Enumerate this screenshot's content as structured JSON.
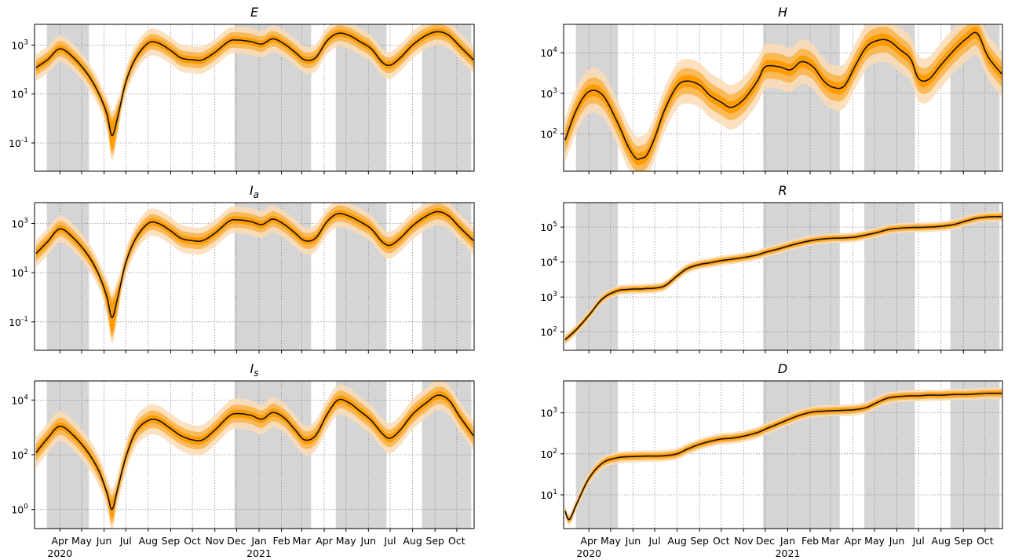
{
  "colors": {
    "line": "#111111",
    "band_outer": "#fbdcb5",
    "band_mid": "#fbb54c",
    "band_inner": "#ff9a00",
    "shade": "#d5d5d5",
    "grid": "#8c8c8c"
  },
  "chart_data": [
    {
      "type": "line",
      "title": "E",
      "title_sub": "",
      "yscale": "log",
      "ylim": [
        0.007,
        7000
      ],
      "yticks": [
        {
          "base": "10",
          "exp": "-1",
          "value": 0.1
        },
        {
          "base": "10",
          "exp": "1",
          "value": 10
        },
        {
          "base": "10",
          "exp": "3",
          "value": 1000
        }
      ],
      "months": [
        "Apr",
        "May",
        "Jun",
        "Jul",
        "Aug",
        "Sep",
        "Oct",
        "Nov",
        "Dec",
        "Jan",
        "Feb",
        "Mar",
        "Apr",
        "May",
        "Jun",
        "Jul",
        "Aug",
        "Sep",
        "Oct"
      ],
      "years": [
        "2020",
        "2021"
      ],
      "show_xlabels": false,
      "shaded_periods": [
        [
          "2020-03-14",
          "2020-05-11"
        ],
        [
          "2020-11-28",
          "2021-03-14"
        ],
        [
          "2021-04-17",
          "2021-06-26"
        ],
        [
          "2021-08-14",
          "2021-10-21"
        ]
      ],
      "x": [
        "2020-02-28",
        "2020-03-15",
        "2020-04-01",
        "2020-04-20",
        "2020-05-10",
        "2020-05-25",
        "2020-06-05",
        "2020-06-12",
        "2020-06-20",
        "2020-07-01",
        "2020-07-15",
        "2020-08-01",
        "2020-08-15",
        "2020-09-01",
        "2020-09-15",
        "2020-10-01",
        "2020-10-15",
        "2020-11-01",
        "2020-11-20",
        "2020-12-01",
        "2020-12-20",
        "2021-01-05",
        "2021-01-20",
        "2021-02-05",
        "2021-02-20",
        "2021-03-05",
        "2021-03-20",
        "2021-04-05",
        "2021-04-20",
        "2021-05-05",
        "2021-05-20",
        "2021-06-05",
        "2021-06-20",
        "2021-07-01",
        "2021-07-15",
        "2021-08-01",
        "2021-08-20",
        "2021-09-05",
        "2021-09-20",
        "2021-10-05",
        "2021-10-24"
      ],
      "series": [
        {
          "values": [
            120,
            250,
            700,
            300,
            60,
            10,
            1.5,
            0.2,
            1.2,
            30,
            300,
            1200,
            1200,
            600,
            300,
            250,
            250,
            500,
            1400,
            1600,
            1400,
            1100,
            1800,
            1100,
            500,
            250,
            300,
            1500,
            3000,
            2500,
            1400,
            700,
            200,
            150,
            300,
            1000,
            2500,
            3500,
            2500,
            900,
            250
          ]
        }
      ]
    },
    {
      "type": "line",
      "title": "I",
      "title_sub": "a",
      "yscale": "log",
      "ylim": [
        0.007,
        7000
      ],
      "yticks": [
        {
          "base": "10",
          "exp": "-1",
          "value": 0.1
        },
        {
          "base": "10",
          "exp": "1",
          "value": 10
        },
        {
          "base": "10",
          "exp": "3",
          "value": 1000
        }
      ],
      "months": [
        "Apr",
        "May",
        "Jun",
        "Jul",
        "Aug",
        "Sep",
        "Oct",
        "Nov",
        "Dec",
        "Jan",
        "Feb",
        "Mar",
        "Apr",
        "May",
        "Jun",
        "Jul",
        "Aug",
        "Sep",
        "Oct"
      ],
      "years": [
        "2020",
        "2021"
      ],
      "show_xlabels": false,
      "shaded_periods": [
        [
          "2020-03-14",
          "2020-05-11"
        ],
        [
          "2020-11-28",
          "2021-03-14"
        ],
        [
          "2021-04-17",
          "2021-06-26"
        ],
        [
          "2021-08-14",
          "2021-10-21"
        ]
      ],
      "x": [
        "2020-02-28",
        "2020-03-15",
        "2020-04-01",
        "2020-04-20",
        "2020-05-10",
        "2020-05-25",
        "2020-06-05",
        "2020-06-12",
        "2020-06-20",
        "2020-07-01",
        "2020-07-15",
        "2020-08-01",
        "2020-08-15",
        "2020-09-01",
        "2020-09-15",
        "2020-10-01",
        "2020-10-15",
        "2020-11-01",
        "2020-11-20",
        "2020-12-01",
        "2020-12-20",
        "2021-01-05",
        "2021-01-20",
        "2021-02-05",
        "2021-02-20",
        "2021-03-05",
        "2021-03-20",
        "2021-04-05",
        "2021-04-20",
        "2021-05-05",
        "2021-05-20",
        "2021-06-05",
        "2021-06-20",
        "2021-07-01",
        "2021-07-15",
        "2021-08-01",
        "2021-08-20",
        "2021-09-05",
        "2021-09-20",
        "2021-10-05",
        "2021-10-24"
      ],
      "series": [
        {
          "values": [
            60,
            180,
            600,
            250,
            50,
            8,
            1.0,
            0.15,
            1.0,
            25,
            250,
            1000,
            1000,
            500,
            250,
            200,
            200,
            400,
            1200,
            1400,
            1200,
            900,
            1500,
            900,
            400,
            200,
            250,
            1200,
            2500,
            2000,
            1200,
            600,
            180,
            130,
            250,
            800,
            2000,
            3000,
            2000,
            700,
            200
          ]
        }
      ]
    },
    {
      "type": "line",
      "title": "I",
      "title_sub": "s",
      "yscale": "log",
      "ylim": [
        0.2,
        50000
      ],
      "yticks": [
        {
          "base": "10",
          "exp": "0",
          "value": 1
        },
        {
          "base": "10",
          "exp": "2",
          "value": 100
        },
        {
          "base": "10",
          "exp": "4",
          "value": 10000
        }
      ],
      "months": [
        "Apr",
        "May",
        "Jun",
        "Jul",
        "Aug",
        "Sep",
        "Oct",
        "Nov",
        "Dec",
        "Jan",
        "Feb",
        "Mar",
        "Apr",
        "May",
        "Jun",
        "Jul",
        "Aug",
        "Sep",
        "Oct"
      ],
      "years": [
        "2020",
        "2021"
      ],
      "show_xlabels": true,
      "shaded_periods": [
        [
          "2020-03-14",
          "2020-05-11"
        ],
        [
          "2020-11-28",
          "2021-03-14"
        ],
        [
          "2021-04-17",
          "2021-06-26"
        ],
        [
          "2021-08-14",
          "2021-10-21"
        ]
      ],
      "x": [
        "2020-02-28",
        "2020-03-15",
        "2020-04-01",
        "2020-04-20",
        "2020-05-10",
        "2020-05-25",
        "2020-06-05",
        "2020-06-12",
        "2020-06-20",
        "2020-07-01",
        "2020-07-15",
        "2020-08-01",
        "2020-08-15",
        "2020-09-01",
        "2020-09-15",
        "2020-10-01",
        "2020-10-15",
        "2020-11-01",
        "2020-11-20",
        "2020-12-01",
        "2020-12-20",
        "2021-01-05",
        "2021-01-20",
        "2021-02-05",
        "2021-02-20",
        "2021-03-05",
        "2021-03-20",
        "2021-04-05",
        "2021-04-20",
        "2021-05-05",
        "2021-05-20",
        "2021-06-05",
        "2021-06-20",
        "2021-07-01",
        "2021-07-15",
        "2021-08-01",
        "2021-08-20",
        "2021-09-05",
        "2021-09-20",
        "2021-10-05",
        "2021-10-24"
      ],
      "series": [
        {
          "values": [
            120,
            400,
            1100,
            500,
            120,
            25,
            4,
            1.0,
            6,
            80,
            700,
            1800,
            1800,
            900,
            500,
            350,
            350,
            800,
            2500,
            3200,
            2800,
            2000,
            3500,
            2200,
            800,
            350,
            500,
            3000,
            10000,
            8000,
            4000,
            1800,
            600,
            400,
            800,
            3000,
            8000,
            15000,
            10000,
            2500,
            500
          ]
        }
      ]
    },
    {
      "type": "line",
      "title": "H",
      "title_sub": "",
      "yscale": "log",
      "ylim": [
        12,
        50000
      ],
      "yticks": [
        {
          "base": "10",
          "exp": "2",
          "value": 100
        },
        {
          "base": "10",
          "exp": "3",
          "value": 1000
        },
        {
          "base": "10",
          "exp": "4",
          "value": 10000
        }
      ],
      "months": [
        "Apr",
        "May",
        "Jun",
        "Jul",
        "Aug",
        "Sep",
        "Oct",
        "Nov",
        "Dec",
        "Jan",
        "Feb",
        "Mar",
        "Apr",
        "May",
        "Jun",
        "Jul",
        "Aug",
        "Sep",
        "Oct"
      ],
      "years": [
        "2020",
        "2021"
      ],
      "show_xlabels": false,
      "shaded_periods": [
        [
          "2020-03-14",
          "2020-05-11"
        ],
        [
          "2020-11-28",
          "2021-03-14"
        ],
        [
          "2021-04-17",
          "2021-06-26"
        ],
        [
          "2021-08-14",
          "2021-10-21"
        ]
      ],
      "x": [
        "2020-02-28",
        "2020-03-15",
        "2020-04-01",
        "2020-04-20",
        "2020-05-10",
        "2020-05-25",
        "2020-06-05",
        "2020-06-12",
        "2020-06-20",
        "2020-07-01",
        "2020-07-15",
        "2020-08-01",
        "2020-08-15",
        "2020-09-01",
        "2020-09-15",
        "2020-10-01",
        "2020-10-15",
        "2020-11-01",
        "2020-11-20",
        "2020-12-01",
        "2020-12-20",
        "2021-01-05",
        "2021-01-20",
        "2021-02-05",
        "2021-02-20",
        "2021-03-05",
        "2021-03-20",
        "2021-04-05",
        "2021-04-20",
        "2021-05-05",
        "2021-05-20",
        "2021-06-05",
        "2021-06-20",
        "2021-07-01",
        "2021-07-15",
        "2021-08-01",
        "2021-08-20",
        "2021-09-05",
        "2021-09-20",
        "2021-10-05",
        "2021-10-24"
      ],
      "series": [
        {
          "values": [
            70,
            400,
            1100,
            900,
            200,
            50,
            25,
            25,
            30,
            80,
            400,
            1500,
            2000,
            1600,
            900,
            600,
            450,
            700,
            2000,
            4500,
            4500,
            3800,
            6000,
            4500,
            2000,
            1400,
            1500,
            5000,
            14000,
            20000,
            20000,
            12000,
            7000,
            2300,
            2200,
            5000,
            12000,
            22000,
            30000,
            8000,
            3000
          ]
        }
      ]
    },
    {
      "type": "line",
      "title": "R",
      "title_sub": "",
      "yscale": "log",
      "ylim": [
        30,
        500000
      ],
      "yticks": [
        {
          "base": "10",
          "exp": "2",
          "value": 100
        },
        {
          "base": "10",
          "exp": "3",
          "value": 1000
        },
        {
          "base": "10",
          "exp": "4",
          "value": 10000
        },
        {
          "base": "10",
          "exp": "5",
          "value": 100000
        }
      ],
      "months": [
        "Apr",
        "May",
        "Jun",
        "Jul",
        "Aug",
        "Sep",
        "Oct",
        "Nov",
        "Dec",
        "Jan",
        "Feb",
        "Mar",
        "Apr",
        "May",
        "Jun",
        "Jul",
        "Aug",
        "Sep",
        "Oct"
      ],
      "years": [
        "2020",
        "2021"
      ],
      "show_xlabels": false,
      "shaded_periods": [
        [
          "2020-03-14",
          "2020-05-11"
        ],
        [
          "2020-11-28",
          "2021-03-14"
        ],
        [
          "2021-04-17",
          "2021-06-26"
        ],
        [
          "2021-08-14",
          "2021-10-21"
        ]
      ],
      "x": [
        "2020-02-28",
        "2020-03-15",
        "2020-04-01",
        "2020-04-20",
        "2020-05-10",
        "2020-05-25",
        "2020-06-05",
        "2020-06-12",
        "2020-06-20",
        "2020-07-01",
        "2020-07-15",
        "2020-08-01",
        "2020-08-15",
        "2020-09-01",
        "2020-09-15",
        "2020-10-01",
        "2020-10-15",
        "2020-11-01",
        "2020-11-20",
        "2020-12-01",
        "2020-12-20",
        "2021-01-05",
        "2021-01-20",
        "2021-02-05",
        "2021-02-20",
        "2021-03-05",
        "2021-03-20",
        "2021-04-05",
        "2021-04-20",
        "2021-05-05",
        "2021-05-20",
        "2021-06-05",
        "2021-06-20",
        "2021-07-01",
        "2021-07-15",
        "2021-08-01",
        "2021-08-20",
        "2021-09-05",
        "2021-09-20",
        "2021-10-05",
        "2021-10-24"
      ],
      "series": [
        {
          "values": [
            60,
            120,
            300,
            900,
            1500,
            1650,
            1700,
            1700,
            1750,
            1800,
            2100,
            4000,
            6500,
            8500,
            9500,
            11000,
            12000,
            13500,
            16000,
            19000,
            24000,
            30000,
            36000,
            42000,
            46000,
            48000,
            49000,
            52000,
            60000,
            70000,
            85000,
            93000,
            97000,
            98000,
            100000,
            105000,
            120000,
            150000,
            180000,
            195000,
            200000
          ]
        }
      ]
    },
    {
      "type": "line",
      "title": "D",
      "title_sub": "",
      "yscale": "log",
      "ylim": [
        1.5,
        6000
      ],
      "yticks": [
        {
          "base": "10",
          "exp": "1",
          "value": 10
        },
        {
          "base": "10",
          "exp": "2",
          "value": 100
        },
        {
          "base": "10",
          "exp": "3",
          "value": 1000
        }
      ],
      "months": [
        "Apr",
        "May",
        "Jun",
        "Jul",
        "Aug",
        "Sep",
        "Oct",
        "Nov",
        "Dec",
        "Jan",
        "Feb",
        "Mar",
        "Apr",
        "May",
        "Jun",
        "Jul",
        "Aug",
        "Sep",
        "Oct"
      ],
      "years": [
        "2020",
        "2021"
      ],
      "show_xlabels": true,
      "shaded_periods": [
        [
          "2020-03-14",
          "2020-05-11"
        ],
        [
          "2020-11-28",
          "2021-03-14"
        ],
        [
          "2021-04-17",
          "2021-06-26"
        ],
        [
          "2021-08-14",
          "2021-10-21"
        ]
      ],
      "x": [
        "2020-02-28",
        "2020-03-05",
        "2020-03-15",
        "2020-04-01",
        "2020-04-20",
        "2020-05-10",
        "2020-05-25",
        "2020-06-05",
        "2020-06-12",
        "2020-06-20",
        "2020-07-01",
        "2020-07-15",
        "2020-08-01",
        "2020-08-15",
        "2020-09-01",
        "2020-09-15",
        "2020-10-01",
        "2020-10-15",
        "2020-11-01",
        "2020-11-20",
        "2020-12-01",
        "2020-12-20",
        "2021-01-05",
        "2021-01-20",
        "2021-02-05",
        "2021-02-20",
        "2021-03-05",
        "2021-03-20",
        "2021-04-05",
        "2021-04-20",
        "2021-05-05",
        "2021-05-20",
        "2021-06-05",
        "2021-06-20",
        "2021-07-01",
        "2021-07-15",
        "2021-08-01",
        "2021-08-20",
        "2021-09-05",
        "2021-09-20",
        "2021-10-05",
        "2021-10-24"
      ],
      "series": [
        {
          "values": [
            4,
            2.5,
            6,
            25,
            60,
            80,
            85,
            86,
            87,
            88,
            88,
            90,
            100,
            130,
            170,
            200,
            230,
            240,
            270,
            330,
            400,
            550,
            720,
            900,
            1050,
            1100,
            1130,
            1150,
            1200,
            1350,
            1800,
            2300,
            2500,
            2600,
            2600,
            2700,
            2700,
            2800,
            2800,
            2900,
            3000,
            3000
          ]
        }
      ]
    }
  ]
}
